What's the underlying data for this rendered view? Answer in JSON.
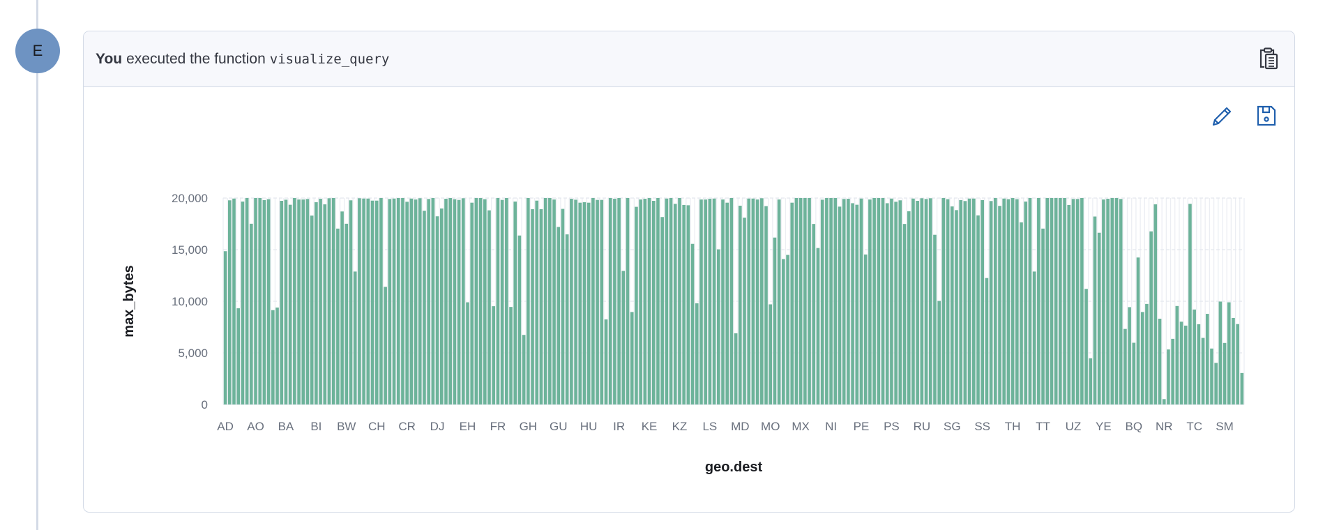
{
  "avatar": {
    "initial": "E",
    "color": "#6e93c2"
  },
  "card": {
    "title_bold": "You",
    "title_text": "executed the function",
    "function_name": "visualize_query",
    "header_icon": "clipboard-icon",
    "actions": [
      {
        "icon": "pencil-icon",
        "label": "edit"
      },
      {
        "icon": "save-icon",
        "label": "save"
      }
    ]
  },
  "chart_data": {
    "type": "bar",
    "xlabel": "geo.dest",
    "ylabel": "max_bytes",
    "ylim": [
      0,
      20000
    ],
    "y_ticks": [
      0,
      5000,
      10000,
      15000,
      20000
    ],
    "y_tick_labels": [
      "0",
      "5,000",
      "10,000",
      "15,000",
      "20,000"
    ],
    "x_tick_labels": [
      "AD",
      "AO",
      "BA",
      "BI",
      "BW",
      "CH",
      "CR",
      "DJ",
      "EH",
      "FR",
      "GH",
      "GU",
      "HU",
      "IR",
      "KE",
      "KZ",
      "LS",
      "MD",
      "MO",
      "MX",
      "NI",
      "PE",
      "PS",
      "RU",
      "SG",
      "SS",
      "TH",
      "TT",
      "UZ",
      "YE",
      "BQ",
      "NR",
      "TC",
      "SM"
    ],
    "x_tick_every": 7,
    "grid": true,
    "bar_color": "#6db39a",
    "values": [
      14850,
      19780,
      19950,
      9320,
      19660,
      20000,
      17510,
      20000,
      20000,
      19800,
      19890,
      9140,
      9390,
      19730,
      19840,
      19350,
      20000,
      19860,
      19860,
      19910,
      18300,
      19600,
      19930,
      19390,
      19980,
      20000,
      17040,
      18700,
      17510,
      19780,
      12880,
      19980,
      19950,
      19950,
      19750,
      19750,
      20000,
      11400,
      19910,
      19950,
      20000,
      20000,
      19640,
      19950,
      19860,
      19980,
      18770,
      19910,
      20000,
      18230,
      18990,
      19930,
      20000,
      19890,
      19820,
      19980,
      9900,
      19550,
      20000,
      20000,
      19890,
      18810,
      9520,
      20000,
      19820,
      20000,
      9450,
      19660,
      16370,
      6740,
      20000,
      18920,
      19750,
      18920,
      20000,
      20000,
      19860,
      17200,
      18950,
      16480,
      19930,
      19840,
      19550,
      19600,
      19550,
      20000,
      19820,
      19820,
      8240,
      20000,
      19930,
      20000,
      12940,
      20000,
      8960,
      19150,
      19860,
      19930,
      20000,
      19730,
      20000,
      18160,
      19950,
      20000,
      19440,
      20000,
      19330,
      19300,
      15560,
      9810,
      19860,
      19860,
      19930,
      19950,
      15030,
      19860,
      19550,
      20000,
      6900,
      19260,
      18100,
      19950,
      19950,
      19860,
      19980,
      19220,
      9700,
      16170,
      19860,
      14090,
      14490,
      19550,
      20000,
      20000,
      20000,
      20000,
      17490,
      15160,
      19840,
      20000,
      20000,
      20000,
      19170,
      19910,
      19930,
      19500,
      19350,
      19950,
      14530,
      19860,
      20000,
      20000,
      20000,
      19500,
      19950,
      19640,
      19780,
      17490,
      18720,
      19950,
      19730,
      19980,
      19910,
      19980,
      16440,
      10030,
      20000,
      19890,
      19190,
      18830,
      19800,
      19710,
      19950,
      19950,
      18320,
      19800,
      12250,
      19710,
      20000,
      19240,
      19950,
      19890,
      20000,
      19890,
      17650,
      19660,
      20000,
      12880,
      20000,
      17040,
      20000,
      20000,
      20000,
      20000,
      20000,
      19330,
      19910,
      19910,
      20000,
      11200,
      4480,
      18210,
      16640,
      19860,
      19930,
      20000,
      20000,
      19910,
      7320,
      9430,
      5980,
      14240,
      8960,
      9740,
      16770,
      19390,
      8310,
      520,
      5330,
      6360,
      9540,
      8020,
      7640,
      19440,
      9200,
      7770,
      6450,
      8780,
      5420,
      4030,
      9970,
      5960,
      9900,
      8380,
      7790,
      3050
    ]
  }
}
